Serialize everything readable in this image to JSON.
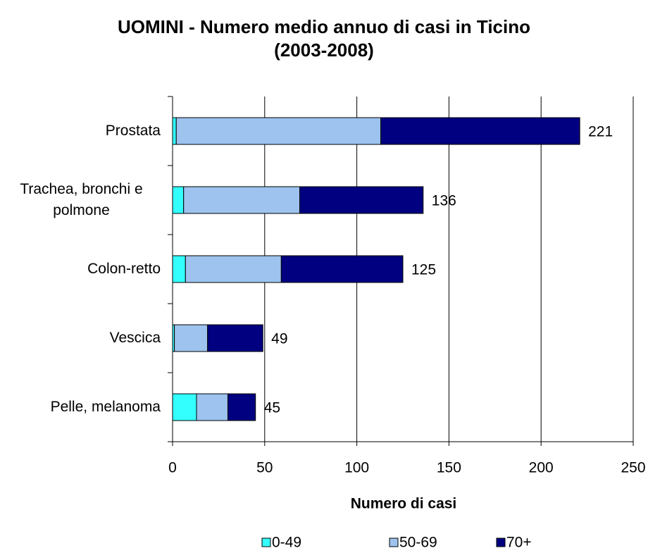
{
  "chart_data": {
    "type": "stacked-barh",
    "title": "UOMINI - Numero medio annuo di casi in Ticino",
    "subtitle": "(2003-2008)",
    "x_label": "Numero di casi",
    "categories": [
      "Prostata",
      "Trachea, bronchi e polmone",
      "Colon-retto",
      "Vescica",
      "Pelle, melanoma"
    ],
    "series": [
      {
        "name": "0-49",
        "color": "#33ffff",
        "values": [
          2,
          6,
          7,
          1,
          13
        ]
      },
      {
        "name": "50-69",
        "color": "#9dc3ee",
        "values": [
          111,
          63,
          52,
          18,
          17
        ]
      },
      {
        "name": "70+",
        "color": "#000080",
        "values": [
          108,
          67,
          66,
          30,
          15
        ]
      }
    ],
    "totals": [
      221,
      136,
      125,
      49,
      45
    ],
    "xlim": [
      0,
      250
    ],
    "xticks": [
      0,
      50,
      100,
      150,
      200,
      250
    ],
    "grid": true
  }
}
